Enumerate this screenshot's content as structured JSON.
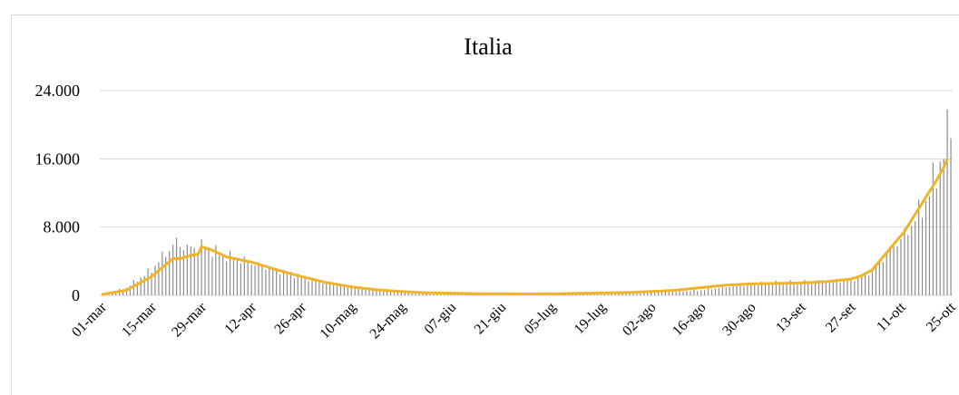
{
  "header": {
    "cropped_text": ""
  },
  "chart_data": {
    "type": "bar+line",
    "title": "Italia",
    "xlabel": "",
    "ylabel": "",
    "ylim": [
      0,
      24000
    ],
    "y_ticks": [
      "0",
      "8.000",
      "16.000",
      "24.000"
    ],
    "y_tick_values": [
      0,
      8000,
      16000,
      24000
    ],
    "x_tick_labels": [
      "01-mar",
      "15-mar",
      "29-mar",
      "12-apr",
      "26-apr",
      "10-mag",
      "24-mag",
      "07-giu",
      "21-giu",
      "05-lug",
      "19-lug",
      "02-ago",
      "16-ago",
      "30-ago",
      "13-set",
      "27-set",
      "11-ott",
      "25-ott"
    ],
    "grid": true,
    "legend": "none",
    "colors": {
      "bars": "#8c8c8c",
      "line": "#f0b429",
      "grid": "#d9d9d9"
    },
    "series": [
      {
        "kind": "bar",
        "anchors": [
          [
            0,
            50
          ],
          [
            7,
            900
          ],
          [
            14,
            3000
          ],
          [
            18,
            5000
          ],
          [
            21,
            6200
          ],
          [
            24,
            5500
          ],
          [
            28,
            5800
          ],
          [
            34,
            4700
          ],
          [
            42,
            3800
          ],
          [
            49,
            3000
          ],
          [
            56,
            2200
          ],
          [
            63,
            1500
          ],
          [
            70,
            1000
          ],
          [
            77,
            700
          ],
          [
            84,
            500
          ],
          [
            91,
            350
          ],
          [
            98,
            300
          ],
          [
            105,
            250
          ],
          [
            112,
            250
          ],
          [
            119,
            200
          ],
          [
            126,
            200
          ],
          [
            133,
            250
          ],
          [
            140,
            250
          ],
          [
            147,
            300
          ],
          [
            154,
            350
          ],
          [
            161,
            450
          ],
          [
            168,
            600
          ],
          [
            175,
            1000
          ],
          [
            182,
            1300
          ],
          [
            189,
            1500
          ],
          [
            196,
            1600
          ],
          [
            203,
            1700
          ],
          [
            210,
            1900
          ],
          [
            213,
            2300
          ],
          [
            216,
            3000
          ],
          [
            219,
            4500
          ],
          [
            222,
            5800
          ],
          [
            225,
            7000
          ],
          [
            228,
            9000
          ],
          [
            231,
            11000
          ],
          [
            234,
            14500
          ],
          [
            236,
            16500
          ],
          [
            237,
            19000
          ],
          [
            238,
            21000
          ]
        ]
      },
      {
        "kind": "line",
        "anchors": [
          [
            0,
            100
          ],
          [
            7,
            600
          ],
          [
            14,
            2200
          ],
          [
            20,
            4300
          ],
          [
            22,
            4300
          ],
          [
            25,
            4700
          ],
          [
            27,
            4800
          ],
          [
            28,
            5700
          ],
          [
            31,
            5300
          ],
          [
            35,
            4500
          ],
          [
            42,
            3900
          ],
          [
            49,
            3000
          ],
          [
            56,
            2200
          ],
          [
            63,
            1500
          ],
          [
            70,
            1000
          ],
          [
            77,
            650
          ],
          [
            84,
            450
          ],
          [
            91,
            300
          ],
          [
            98,
            250
          ],
          [
            105,
            200
          ],
          [
            112,
            180
          ],
          [
            119,
            170
          ],
          [
            126,
            180
          ],
          [
            133,
            230
          ],
          [
            140,
            280
          ],
          [
            147,
            330
          ],
          [
            154,
            450
          ],
          [
            161,
            600
          ],
          [
            168,
            900
          ],
          [
            175,
            1200
          ],
          [
            182,
            1350
          ],
          [
            189,
            1400
          ],
          [
            196,
            1450
          ],
          [
            203,
            1600
          ],
          [
            210,
            1900
          ],
          [
            213,
            2300
          ],
          [
            216,
            3000
          ],
          [
            219,
            4500
          ],
          [
            222,
            6000
          ],
          [
            225,
            7500
          ],
          [
            228,
            9500
          ],
          [
            231,
            11500
          ],
          [
            234,
            13500
          ],
          [
            236,
            15000
          ],
          [
            237,
            16000
          ]
        ]
      }
    ]
  }
}
